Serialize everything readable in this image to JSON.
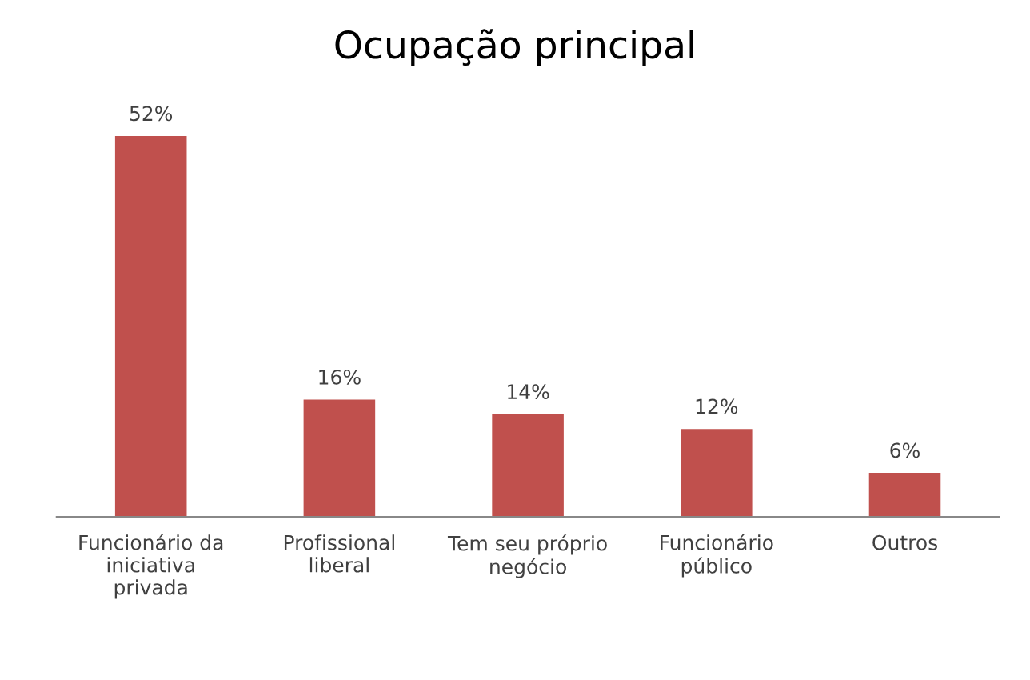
{
  "chart_data": {
    "type": "bar",
    "title": "Ocupação principal",
    "categories": [
      "Funcionário da\niniciativa\nprivada",
      "Profissional\nliberal",
      "Tem seu próprio\nnegócio",
      "Funcionário\npúblico",
      "Outros"
    ],
    "values": [
      52,
      16,
      14,
      12,
      6
    ],
    "value_labels": [
      "52%",
      "16%",
      "14%",
      "12%",
      "6%"
    ],
    "color": "#c0504d",
    "tick_labels": "x",
    "grid": false,
    "legend": false
  }
}
